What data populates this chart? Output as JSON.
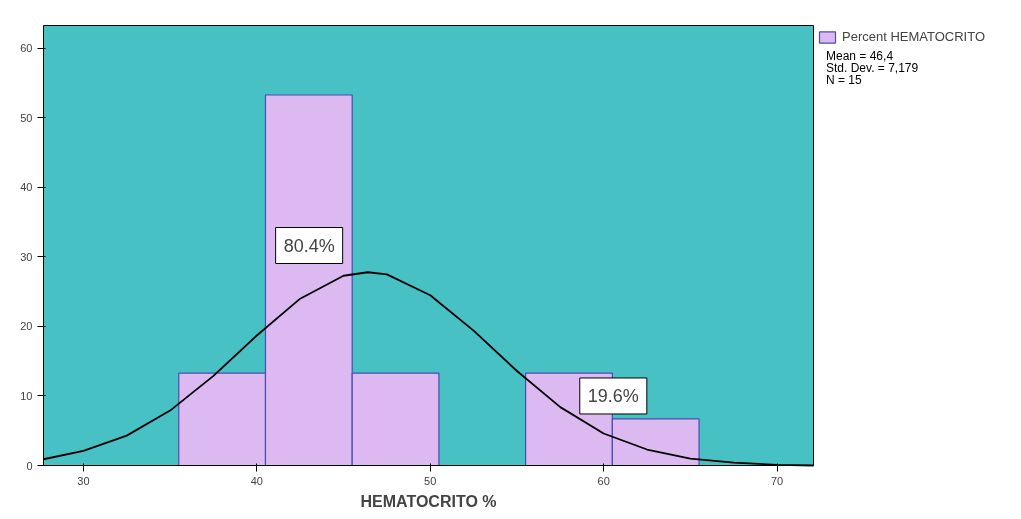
{
  "chart_data": {
    "type": "histogram",
    "xlabel": "HEMATOCRITO %",
    "xlim": [
      27.7,
      72.1
    ],
    "ylim": [
      0,
      63.3
    ],
    "xticks": [
      30,
      40,
      50,
      60,
      70
    ],
    "yticks": [
      0,
      10,
      20,
      30,
      40,
      50,
      60
    ],
    "grid": false,
    "legend": "top right",
    "series": [
      {
        "name": "Percent HEMATOCRITO",
        "color": "#ddb9f2",
        "bins": [
          35.5,
          40.5,
          45.5,
          50.5,
          55.5,
          60.5,
          65.5
        ],
        "values": [
          13.3,
          53.3,
          13.3,
          0,
          13.3,
          6.7
        ]
      },
      {
        "type": "line",
        "color": "#000000",
        "x": [
          27.7,
          30,
          32.5,
          35,
          37.5,
          40,
          42.5,
          45,
          46.4,
          47.5,
          50,
          52.5,
          55,
          57.5,
          60,
          62.5,
          65,
          67.5,
          70,
          72.1
        ],
        "values": [
          0.9,
          2.1,
          4.3,
          7.9,
          12.9,
          18.7,
          24.0,
          27.3,
          27.8,
          27.5,
          24.5,
          19.4,
          13.6,
          8.4,
          4.6,
          2.3,
          1.0,
          0.4,
          0.1,
          0.0
        ]
      }
    ],
    "annotations": [
      "80.4%",
      "19.6%",
      "Mean = 46,4",
      "Std. Dev. = 7,179",
      "N = 15"
    ]
  }
}
